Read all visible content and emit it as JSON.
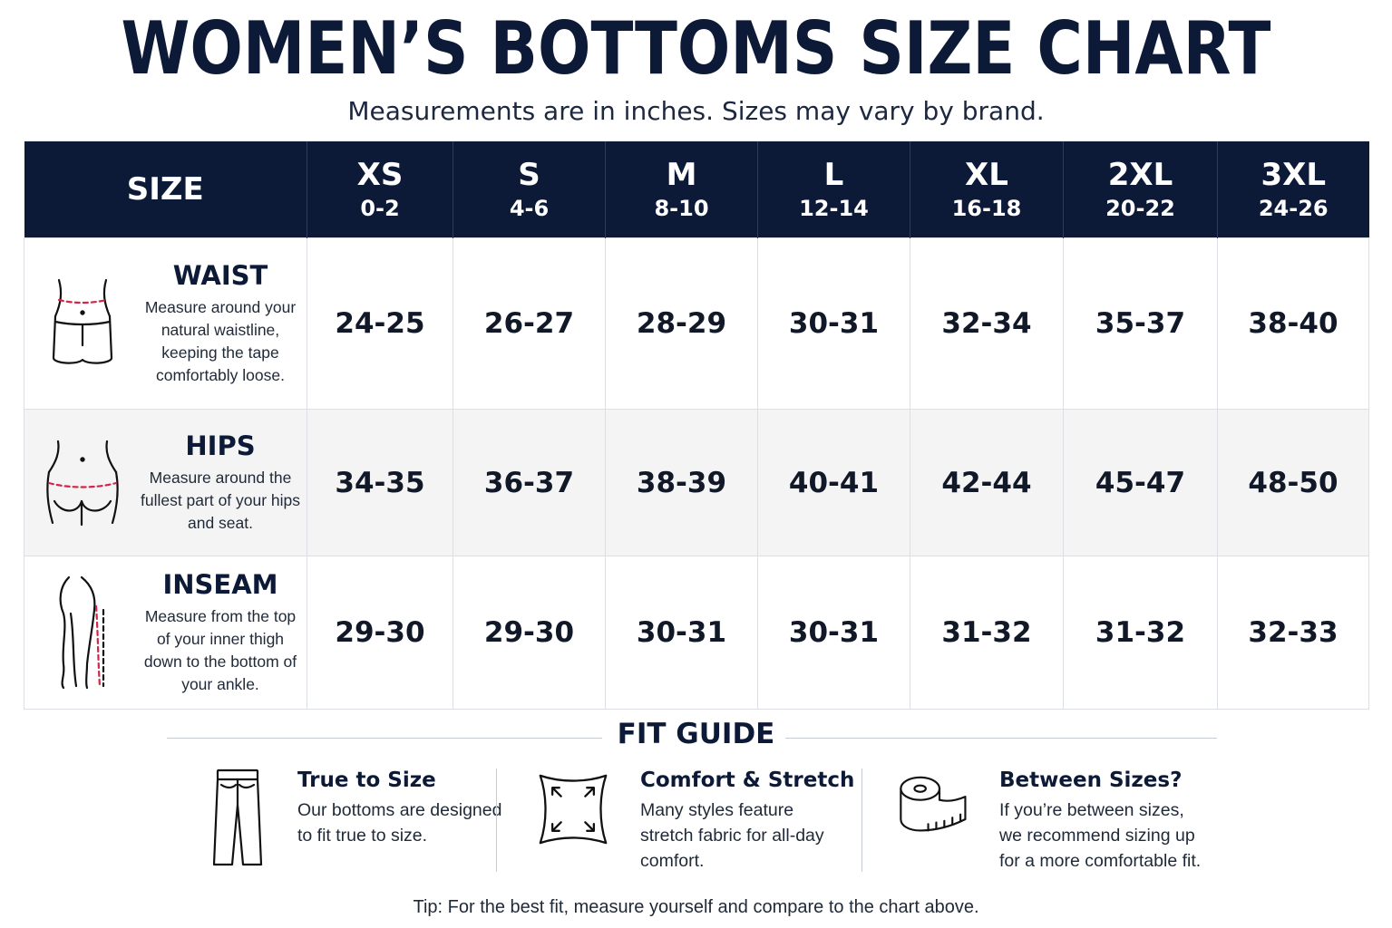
{
  "title": "WOMEN’S BOTTOMS SIZE CHART",
  "subtitle": "Measurements are in inches. Sizes may vary by brand.",
  "table": {
    "size_header": "SIZE",
    "sizes": [
      {
        "code": "XS",
        "range": "0-2"
      },
      {
        "code": "S",
        "range": "4-6"
      },
      {
        "code": "M",
        "range": "8-10"
      },
      {
        "code": "L",
        "range": "12-14"
      },
      {
        "code": "XL",
        "range": "16-18"
      },
      {
        "code": "2XL",
        "range": "20-22"
      },
      {
        "code": "3XL",
        "range": "24-26"
      }
    ],
    "rows": [
      {
        "label": "WAIST",
        "icon": "waist-icon",
        "description": "Measure around your natural waistline, keeping the tape comfortably loose.",
        "values": [
          "24-25",
          "26-27",
          "28-29",
          "30-31",
          "32-34",
          "35-37",
          "38-40"
        ]
      },
      {
        "label": "HIPS",
        "icon": "hips-icon",
        "description": "Measure around the fullest part of your hips and seat.",
        "values": [
          "34-35",
          "36-37",
          "38-39",
          "40-41",
          "42-44",
          "45-47",
          "48-50"
        ]
      },
      {
        "label": "INSEAM",
        "icon": "inseam-icon",
        "description": "Measure from the top of your inner thigh down to the bottom of your ankle.",
        "values": [
          "29-30",
          "29-30",
          "30-31",
          "30-31",
          "31-32",
          "31-32",
          "32-33"
        ]
      }
    ]
  },
  "fit_guide": {
    "heading": "FIT GUIDE",
    "items": [
      {
        "title": "True to Size",
        "description": "Our bottoms are designed to fit true to size.",
        "icon": "pants-icon"
      },
      {
        "title": "Comfort & Stretch",
        "description": "Many styles feature stretch fabric for all-day comfort.",
        "icon": "stretch-icon"
      },
      {
        "title": "Between Sizes?",
        "description": "If you’re between sizes, we recommend sizing up for a more comfortable fit.",
        "icon": "tape-measure-icon"
      }
    ]
  },
  "tip": "Tip: For the best fit, measure yourself and compare to the chart above.",
  "colors": {
    "navy": "#0c1a38",
    "accent_dashed": "#d1264a",
    "row_alt": "#f4f4f5"
  }
}
